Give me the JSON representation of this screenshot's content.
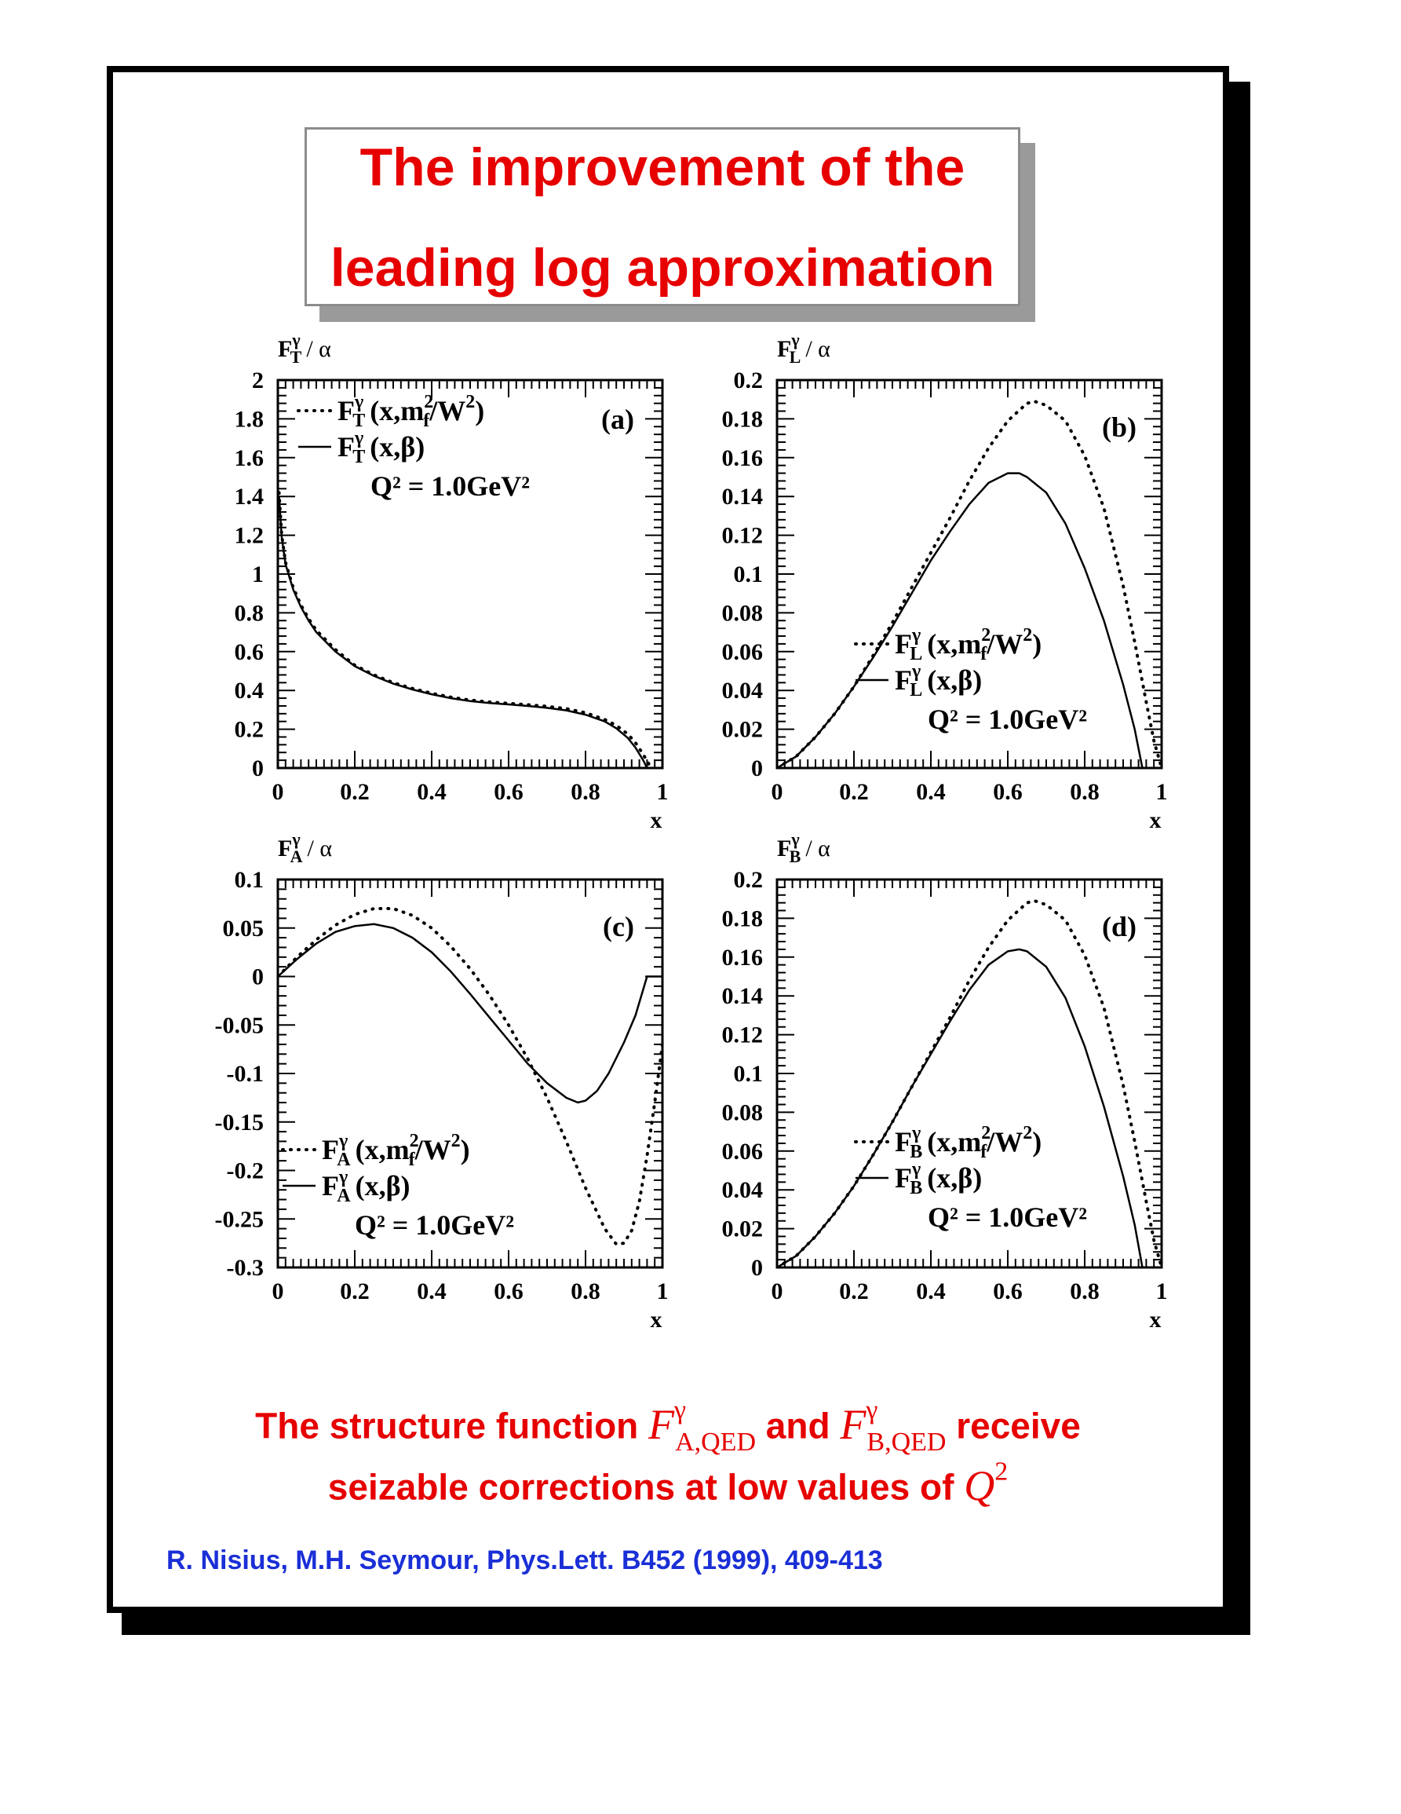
{
  "slide": {
    "title_line1": "The improvement of the",
    "title_line2": "leading log approximation",
    "caption_pre": "The structure function ",
    "caption_fa_base": "F",
    "caption_fa_sup": "γ",
    "caption_fa_sub": "A,QED",
    "caption_mid": " and ",
    "caption_fb_base": "F",
    "caption_fb_sup": "γ",
    "caption_fb_sub": "B,QED",
    "caption_post": " receive",
    "caption_line2_pre": "seizable corrections at low values of ",
    "caption_q_base": "Q",
    "caption_q_sup": "2",
    "reference": "R. Nisius, M.H. Seymour, Phys.Lett. B452 (1999), 409-413"
  },
  "colors": {
    "title_red": "#e60000",
    "reference_blue": "#1a2fd6",
    "frame": "#000000"
  },
  "chart_data": [
    {
      "type": "line",
      "panel": "(a)",
      "ylabel_base": "F",
      "ylabel_sup": "γ",
      "ylabel_sub": "T",
      "ylabel_rest": "/ α",
      "xlabel": "x",
      "xlim": [
        0,
        1
      ],
      "ylim": [
        0,
        2
      ],
      "xticks": [
        "0",
        "0.2",
        "0.4",
        "0.6",
        "0.8",
        "1"
      ],
      "yticks": [
        "0",
        "0.2",
        "0.4",
        "0.6",
        "0.8",
        "1",
        "1.2",
        "1.4",
        "1.6",
        "1.8",
        "2"
      ],
      "legend_position": "top-left",
      "q2_label": "Q² = 1.0GeV²",
      "series": [
        {
          "legend_base": "F",
          "legend_sup": "γ",
          "legend_sub": "T",
          "legend_arg": "(x,m",
          "legend_arg2": "/W",
          "name_full": "Fγ_T (x,m_f²/W²)",
          "style": "dotted",
          "x": [
            0.003,
            0.01,
            0.02,
            0.04,
            0.06,
            0.08,
            0.1,
            0.15,
            0.2,
            0.25,
            0.3,
            0.35,
            0.4,
            0.45,
            0.5,
            0.55,
            0.6,
            0.65,
            0.7,
            0.75,
            0.8,
            0.85,
            0.88,
            0.91,
            0.93,
            0.95,
            0.965,
            0.975
          ],
          "y": [
            1.42,
            1.2,
            1.06,
            0.93,
            0.84,
            0.77,
            0.71,
            0.61,
            0.53,
            0.48,
            0.44,
            0.41,
            0.385,
            0.365,
            0.35,
            0.34,
            0.333,
            0.326,
            0.318,
            0.306,
            0.285,
            0.25,
            0.22,
            0.175,
            0.13,
            0.07,
            0.02,
            0.0
          ]
        },
        {
          "legend_base": "F",
          "legend_sup": "γ",
          "legend_sub": "T",
          "legend_arg": "(x,β)",
          "name_full": "Fγ_T (x,β)",
          "style": "solid",
          "x": [
            0.003,
            0.01,
            0.02,
            0.04,
            0.06,
            0.08,
            0.1,
            0.15,
            0.2,
            0.25,
            0.3,
            0.35,
            0.4,
            0.45,
            0.5,
            0.55,
            0.6,
            0.65,
            0.7,
            0.75,
            0.8,
            0.85,
            0.88,
            0.91,
            0.93,
            0.95,
            0.96
          ],
          "y": [
            1.4,
            1.19,
            1.05,
            0.92,
            0.83,
            0.76,
            0.7,
            0.6,
            0.525,
            0.475,
            0.435,
            0.405,
            0.38,
            0.36,
            0.345,
            0.335,
            0.328,
            0.32,
            0.31,
            0.297,
            0.275,
            0.24,
            0.205,
            0.155,
            0.105,
            0.04,
            0.0
          ]
        }
      ]
    },
    {
      "type": "line",
      "panel": "(b)",
      "ylabel_base": "F",
      "ylabel_sup": "γ",
      "ylabel_sub": "L",
      "ylabel_rest": "/ α",
      "xlabel": "x",
      "xlim": [
        0,
        1
      ],
      "ylim": [
        0,
        0.2
      ],
      "xticks": [
        "0",
        "0.2",
        "0.4",
        "0.6",
        "0.8",
        "1"
      ],
      "yticks": [
        "0",
        "0.02",
        "0.04",
        "0.06",
        "0.08",
        "0.1",
        "0.12",
        "0.14",
        "0.16",
        "0.18",
        "0.2"
      ],
      "legend_position": "bottom-right",
      "q2_label": "Q² = 1.0GeV²",
      "series": [
        {
          "legend_base": "F",
          "legend_sup": "γ",
          "legend_sub": "L",
          "legend_arg": "(x,m",
          "legend_arg2": "/W",
          "name_full": "Fγ_L (x,m_f²/W²)",
          "style": "dotted",
          "x": [
            0,
            0.05,
            0.1,
            0.15,
            0.2,
            0.25,
            0.3,
            0.35,
            0.4,
            0.45,
            0.5,
            0.55,
            0.6,
            0.65,
            0.67,
            0.7,
            0.75,
            0.8,
            0.85,
            0.9,
            0.93,
            0.96,
            0.98,
            1.0
          ],
          "y": [
            0,
            0.006,
            0.016,
            0.028,
            0.042,
            0.058,
            0.075,
            0.093,
            0.111,
            0.129,
            0.148,
            0.165,
            0.179,
            0.188,
            0.189,
            0.187,
            0.179,
            0.161,
            0.134,
            0.094,
            0.065,
            0.034,
            0.014,
            0.0
          ]
        },
        {
          "legend_base": "F",
          "legend_sup": "γ",
          "legend_sub": "L",
          "legend_arg": "(x,β)",
          "name_full": "Fγ_L (x,β)",
          "style": "solid",
          "x": [
            0,
            0.05,
            0.1,
            0.15,
            0.2,
            0.25,
            0.3,
            0.35,
            0.4,
            0.45,
            0.5,
            0.55,
            0.6,
            0.63,
            0.65,
            0.7,
            0.75,
            0.8,
            0.85,
            0.9,
            0.93,
            0.95
          ],
          "y": [
            0,
            0.006,
            0.016,
            0.028,
            0.042,
            0.057,
            0.073,
            0.09,
            0.107,
            0.122,
            0.136,
            0.147,
            0.152,
            0.152,
            0.15,
            0.142,
            0.126,
            0.103,
            0.076,
            0.043,
            0.02,
            0.0
          ]
        }
      ]
    },
    {
      "type": "line",
      "panel": "(c)",
      "ylabel_base": "F",
      "ylabel_sup": "γ",
      "ylabel_sub": "A",
      "ylabel_rest": "/ α",
      "xlabel": "x",
      "xlim": [
        0,
        1
      ],
      "ylim": [
        -0.3,
        0.1
      ],
      "xticks": [
        "0",
        "0.2",
        "0.4",
        "0.6",
        "0.8",
        "1"
      ],
      "yticks": [
        "-0.3",
        "-0.25",
        "-0.2",
        "-0.15",
        "-0.1",
        "-0.05",
        "0",
        "0.05",
        "0.1"
      ],
      "legend_position": "bottom-left",
      "q2_label": "Q² = 1.0GeV²",
      "series": [
        {
          "legend_base": "F",
          "legend_sup": "γ",
          "legend_sub": "A",
          "legend_arg": "(x,m",
          "legend_arg2": "/W",
          "name_full": "Fγ_A (x,m_f²/W²)",
          "style": "dotted",
          "x": [
            0,
            0.05,
            0.1,
            0.15,
            0.2,
            0.25,
            0.3,
            0.35,
            0.4,
            0.45,
            0.5,
            0.55,
            0.6,
            0.65,
            0.7,
            0.75,
            0.8,
            0.85,
            0.88,
            0.9,
            0.92,
            0.94,
            0.96,
            0.98,
            1.0
          ],
          "y": [
            0,
            0.02,
            0.038,
            0.053,
            0.064,
            0.07,
            0.07,
            0.063,
            0.05,
            0.031,
            0.008,
            -0.019,
            -0.05,
            -0.085,
            -0.125,
            -0.17,
            -0.218,
            -0.26,
            -0.276,
            -0.275,
            -0.262,
            -0.232,
            -0.185,
            -0.13,
            -0.07
          ]
        },
        {
          "legend_base": "F",
          "legend_sup": "γ",
          "legend_sub": "A",
          "legend_arg": "(x,β)",
          "name_full": "Fγ_A (x,β)",
          "style": "solid",
          "x": [
            0,
            0.05,
            0.1,
            0.15,
            0.2,
            0.25,
            0.3,
            0.35,
            0.4,
            0.45,
            0.5,
            0.55,
            0.6,
            0.65,
            0.7,
            0.75,
            0.78,
            0.8,
            0.83,
            0.86,
            0.9,
            0.93,
            0.96,
            1.0
          ],
          "y": [
            0,
            0.018,
            0.034,
            0.046,
            0.052,
            0.054,
            0.05,
            0.04,
            0.025,
            0.005,
            -0.018,
            -0.042,
            -0.066,
            -0.09,
            -0.11,
            -0.125,
            -0.13,
            -0.128,
            -0.118,
            -0.1,
            -0.068,
            -0.04,
            0.0,
            0.0
          ]
        }
      ]
    },
    {
      "type": "line",
      "panel": "(d)",
      "ylabel_base": "F",
      "ylabel_sup": "γ",
      "ylabel_sub": "B",
      "ylabel_rest": "/ α",
      "xlabel": "x",
      "xlim": [
        0,
        1
      ],
      "ylim": [
        0,
        0.2
      ],
      "xticks": [
        "0",
        "0.2",
        "0.4",
        "0.6",
        "0.8",
        "1"
      ],
      "yticks": [
        "0",
        "0.02",
        "0.04",
        "0.06",
        "0.08",
        "0.1",
        "0.12",
        "0.14",
        "0.16",
        "0.18",
        "0.2"
      ],
      "legend_position": "bottom-right",
      "q2_label": "Q² = 1.0GeV²",
      "series": [
        {
          "legend_base": "F",
          "legend_sup": "γ",
          "legend_sub": "B",
          "legend_arg": "(x,m",
          "legend_arg2": "/W",
          "name_full": "Fγ_B (x,m_f²/W²)",
          "style": "dotted",
          "x": [
            0,
            0.05,
            0.1,
            0.15,
            0.2,
            0.25,
            0.3,
            0.35,
            0.4,
            0.45,
            0.5,
            0.55,
            0.6,
            0.65,
            0.67,
            0.7,
            0.75,
            0.8,
            0.85,
            0.9,
            0.93,
            0.96,
            0.98,
            1.0
          ],
          "y": [
            0,
            0.006,
            0.016,
            0.028,
            0.042,
            0.058,
            0.075,
            0.093,
            0.111,
            0.129,
            0.148,
            0.165,
            0.179,
            0.188,
            0.189,
            0.187,
            0.179,
            0.161,
            0.134,
            0.094,
            0.065,
            0.034,
            0.014,
            0.0
          ]
        },
        {
          "legend_base": "F",
          "legend_sup": "γ",
          "legend_sub": "B",
          "legend_arg": "(x,β)",
          "name_full": "Fγ_B (x,β)",
          "style": "solid",
          "x": [
            0,
            0.05,
            0.1,
            0.15,
            0.2,
            0.25,
            0.3,
            0.35,
            0.4,
            0.45,
            0.5,
            0.55,
            0.6,
            0.63,
            0.65,
            0.7,
            0.75,
            0.8,
            0.85,
            0.9,
            0.93,
            0.95
          ],
          "y": [
            0,
            0.006,
            0.016,
            0.028,
            0.042,
            0.058,
            0.075,
            0.093,
            0.11,
            0.127,
            0.143,
            0.156,
            0.163,
            0.164,
            0.163,
            0.155,
            0.139,
            0.114,
            0.083,
            0.047,
            0.022,
            0.0
          ]
        }
      ]
    }
  ]
}
